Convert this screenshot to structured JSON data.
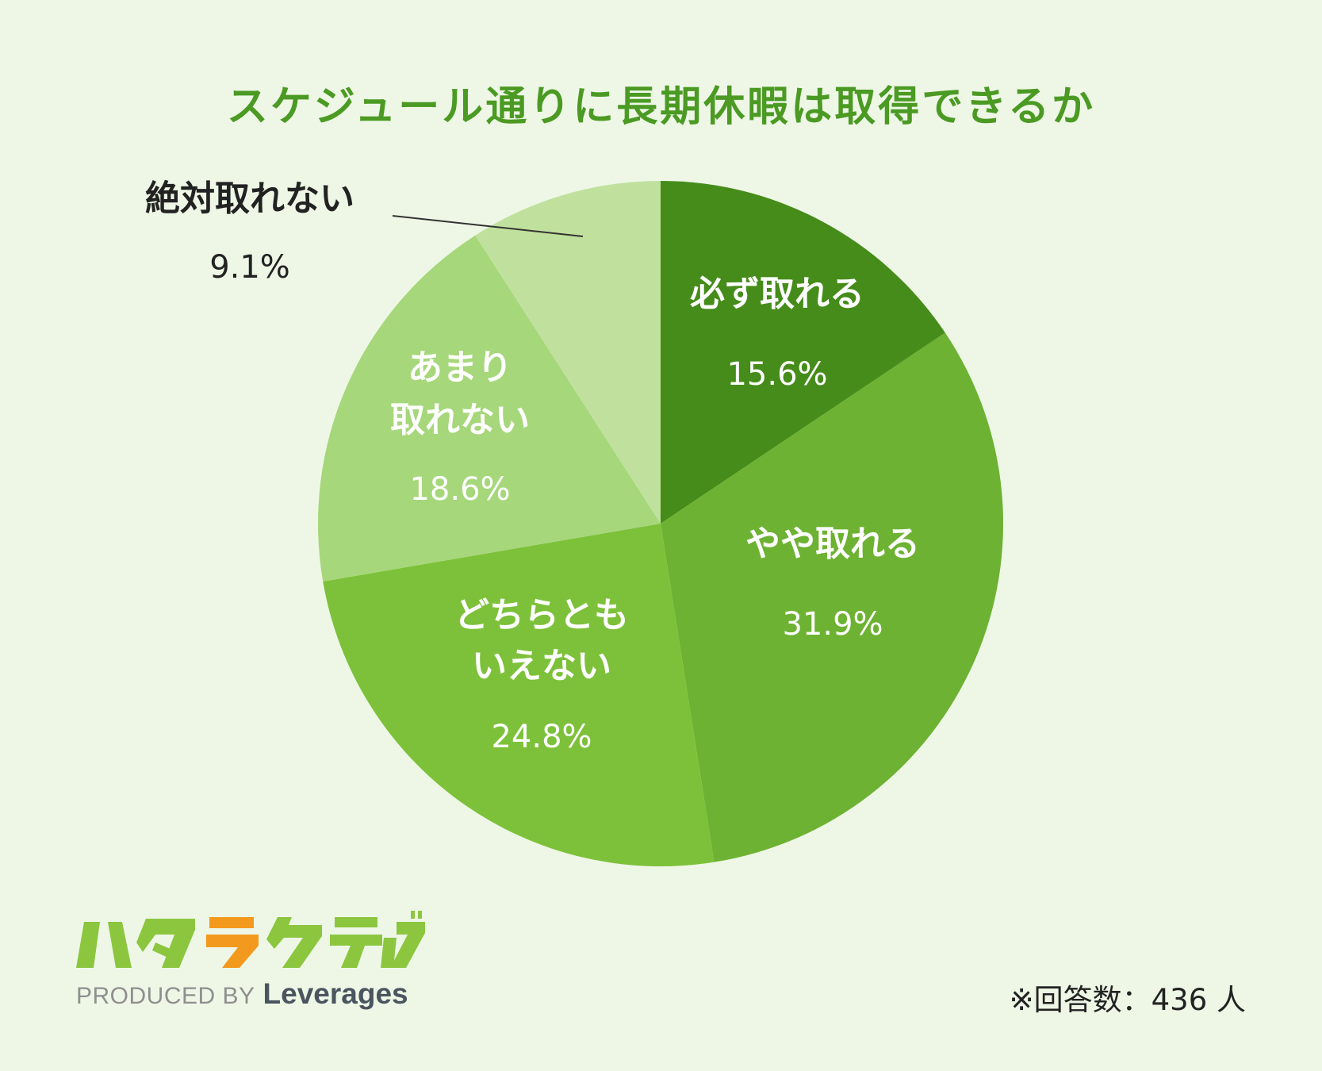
{
  "chart_data": {
    "type": "pie",
    "title": "スケジュール通りに長期休暇は取得できるか",
    "slices": [
      {
        "label": "必ず取れる",
        "lines": [
          "必ず取れる"
        ],
        "value": 15.6,
        "value_label": "15.6%",
        "color": "#458c1a"
      },
      {
        "label": "やや取れる",
        "lines": [
          "やや取れる"
        ],
        "value": 31.9,
        "value_label": "31.9%",
        "color": "#6db232"
      },
      {
        "label": "どちらともいえない",
        "lines": [
          "どちらとも",
          "いえない"
        ],
        "value": 24.8,
        "value_label": "24.8%",
        "color": "#7dc13a"
      },
      {
        "label": "あまり取れない",
        "lines": [
          "あまり",
          "取れない"
        ],
        "value": 18.6,
        "value_label": "18.6%",
        "color": "#a6d77a"
      },
      {
        "label": "絶対取れない",
        "lines": [
          "絶対取れない"
        ],
        "value": 9.1,
        "value_label": "9.1%",
        "color": "#c0e19e"
      }
    ],
    "start": "12 o'clock",
    "direction": "clockwise",
    "label_color_inside": "#ffffff",
    "label_color_outside": "#222222"
  },
  "logo": {
    "mark": "ハタラクティブ",
    "produced_by": "PRODUCED BY",
    "brand": "Leverages"
  },
  "footnote": "※回答数：436 人",
  "colors": {
    "background": "#eef7e6",
    "title": "#4b9a23",
    "logo_green": "#8cc63f",
    "logo_orange": "#f39a1e"
  }
}
